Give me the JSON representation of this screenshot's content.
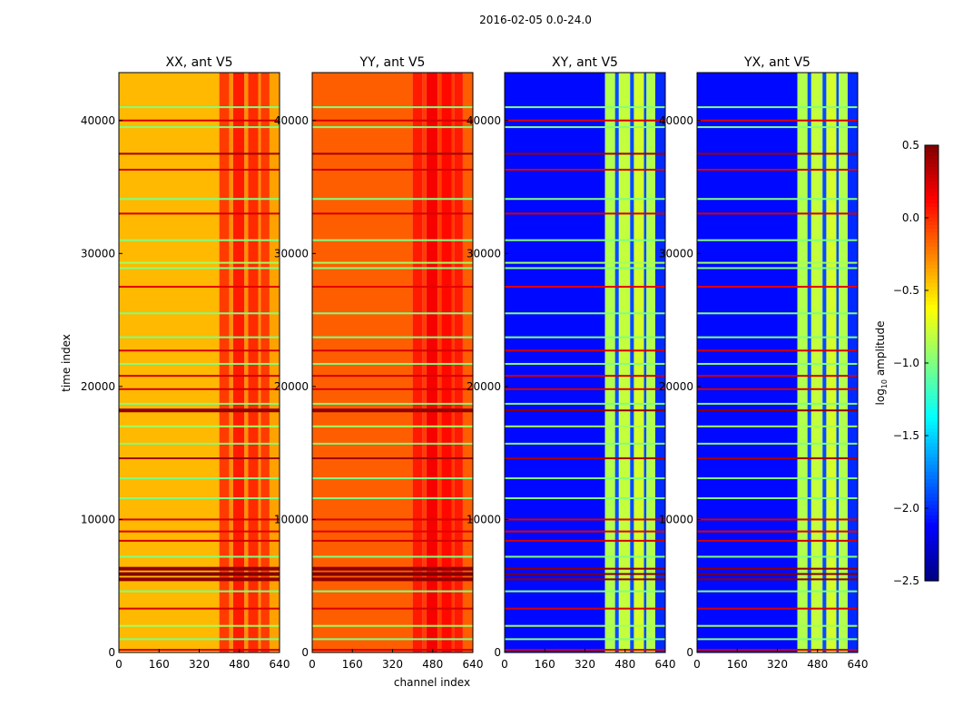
{
  "chart_data": {
    "type": "heatmap",
    "suptitle": "2016-02-05 0.0-24.0",
    "xlabel": "channel index",
    "ylabel": "time index",
    "xlim": [
      0,
      640
    ],
    "ylim": [
      0,
      43600
    ],
    "xticks": [
      "0",
      "160",
      "320",
      "480",
      "640"
    ],
    "xtick_values": [
      0,
      160,
      320,
      480,
      640
    ],
    "yticks": [
      "0",
      "10000",
      "20000",
      "30000",
      "40000"
    ],
    "ytick_values": [
      0,
      10000,
      20000,
      30000,
      40000
    ],
    "colorbar": {
      "label": "log10 amplitude",
      "label_main": "log",
      "label_sub": "10",
      "label_rest": " amplitude",
      "range": [
        -2.5,
        0.5
      ],
      "ticks": [
        "0.5",
        "0.0",
        "−0.5",
        "−1.0",
        "−1.5",
        "−2.0",
        "−2.5"
      ],
      "tick_values": [
        0.5,
        0.0,
        -0.5,
        -1.0,
        -1.5,
        -2.0,
        -2.5
      ],
      "colormap": "jet"
    },
    "panels": [
      {
        "title": "XX, ant V5",
        "channel_segments": [
          [
            0,
            400,
            -0.42
          ],
          [
            400,
            440,
            -0.05
          ],
          [
            440,
            455,
            -0.3
          ],
          [
            455,
            500,
            0.05
          ],
          [
            500,
            515,
            -0.3
          ],
          [
            515,
            555,
            0.0
          ],
          [
            555,
            565,
            -0.3
          ],
          [
            565,
            600,
            -0.05
          ],
          [
            600,
            640,
            -0.35
          ]
        ]
      },
      {
        "title": "YY, ant V5",
        "channel_segments": [
          [
            0,
            400,
            -0.15
          ],
          [
            400,
            440,
            0.05
          ],
          [
            440,
            455,
            -0.05
          ],
          [
            455,
            500,
            0.15
          ],
          [
            500,
            515,
            -0.05
          ],
          [
            515,
            555,
            0.1
          ],
          [
            555,
            565,
            -0.05
          ],
          [
            565,
            600,
            0.05
          ],
          [
            600,
            640,
            -0.15
          ]
        ]
      },
      {
        "title": "XY, ant V5",
        "channel_segments": [
          [
            0,
            400,
            -2.1
          ],
          [
            400,
            440,
            -0.85
          ],
          [
            440,
            455,
            -1.9
          ],
          [
            455,
            500,
            -0.8
          ],
          [
            500,
            515,
            -1.9
          ],
          [
            515,
            555,
            -0.75
          ],
          [
            555,
            565,
            -1.9
          ],
          [
            565,
            600,
            -0.85
          ],
          [
            600,
            640,
            -2.0
          ]
        ]
      },
      {
        "title": "YX, ant V5",
        "channel_segments": [
          [
            0,
            400,
            -2.1
          ],
          [
            400,
            440,
            -0.85
          ],
          [
            440,
            455,
            -1.9
          ],
          [
            455,
            500,
            -0.8
          ],
          [
            500,
            515,
            -1.9
          ],
          [
            515,
            555,
            -0.75
          ],
          [
            555,
            565,
            -1.9
          ],
          [
            565,
            600,
            -0.85
          ],
          [
            600,
            640,
            -2.0
          ]
        ]
      }
    ],
    "flagged_rows": [
      {
        "time": 41000,
        "value": -1.0
      },
      {
        "time": 40000,
        "value": 0.25
      },
      {
        "time": 39500,
        "value": -1.0
      },
      {
        "time": 37500,
        "value": 0.4
      },
      {
        "time": 36300,
        "value": 0.25
      },
      {
        "time": 34100,
        "value": -1.0
      },
      {
        "time": 33000,
        "value": 0.25
      },
      {
        "time": 31000,
        "value": -1.0
      },
      {
        "time": 29300,
        "value": -0.9
      },
      {
        "time": 28900,
        "value": -1.0
      },
      {
        "time": 27500,
        "value": 0.2
      },
      {
        "time": 25500,
        "value": -1.0
      },
      {
        "time": 23700,
        "value": -1.0
      },
      {
        "time": 22700,
        "value": 0.25
      },
      {
        "time": 21700,
        "value": -1.0
      },
      {
        "time": 20800,
        "value": 0.25
      },
      {
        "time": 19800,
        "value": 0.25
      },
      {
        "time": 18700,
        "value": -1.0
      },
      {
        "time": 18200,
        "value": 0.45
      },
      {
        "time": 17000,
        "value": -0.9
      },
      {
        "time": 15700,
        "value": -1.0
      },
      {
        "time": 14600,
        "value": 0.4
      },
      {
        "time": 13100,
        "value": -1.0
      },
      {
        "time": 11600,
        "value": -1.0
      },
      {
        "time": 10000,
        "value": 0.25
      },
      {
        "time": 9100,
        "value": 0.2
      },
      {
        "time": 8400,
        "value": 0.25
      },
      {
        "time": 7200,
        "value": -1.0
      },
      {
        "time": 6300,
        "value": 0.45
      },
      {
        "time": 5900,
        "value": 0.5
      },
      {
        "time": 5500,
        "value": 0.45
      },
      {
        "time": 4600,
        "value": -1.0
      },
      {
        "time": 3300,
        "value": 0.25
      },
      {
        "time": 2000,
        "value": -0.9
      },
      {
        "time": 1000,
        "value": -1.0
      },
      {
        "time": 200,
        "value": 0.25
      }
    ]
  }
}
